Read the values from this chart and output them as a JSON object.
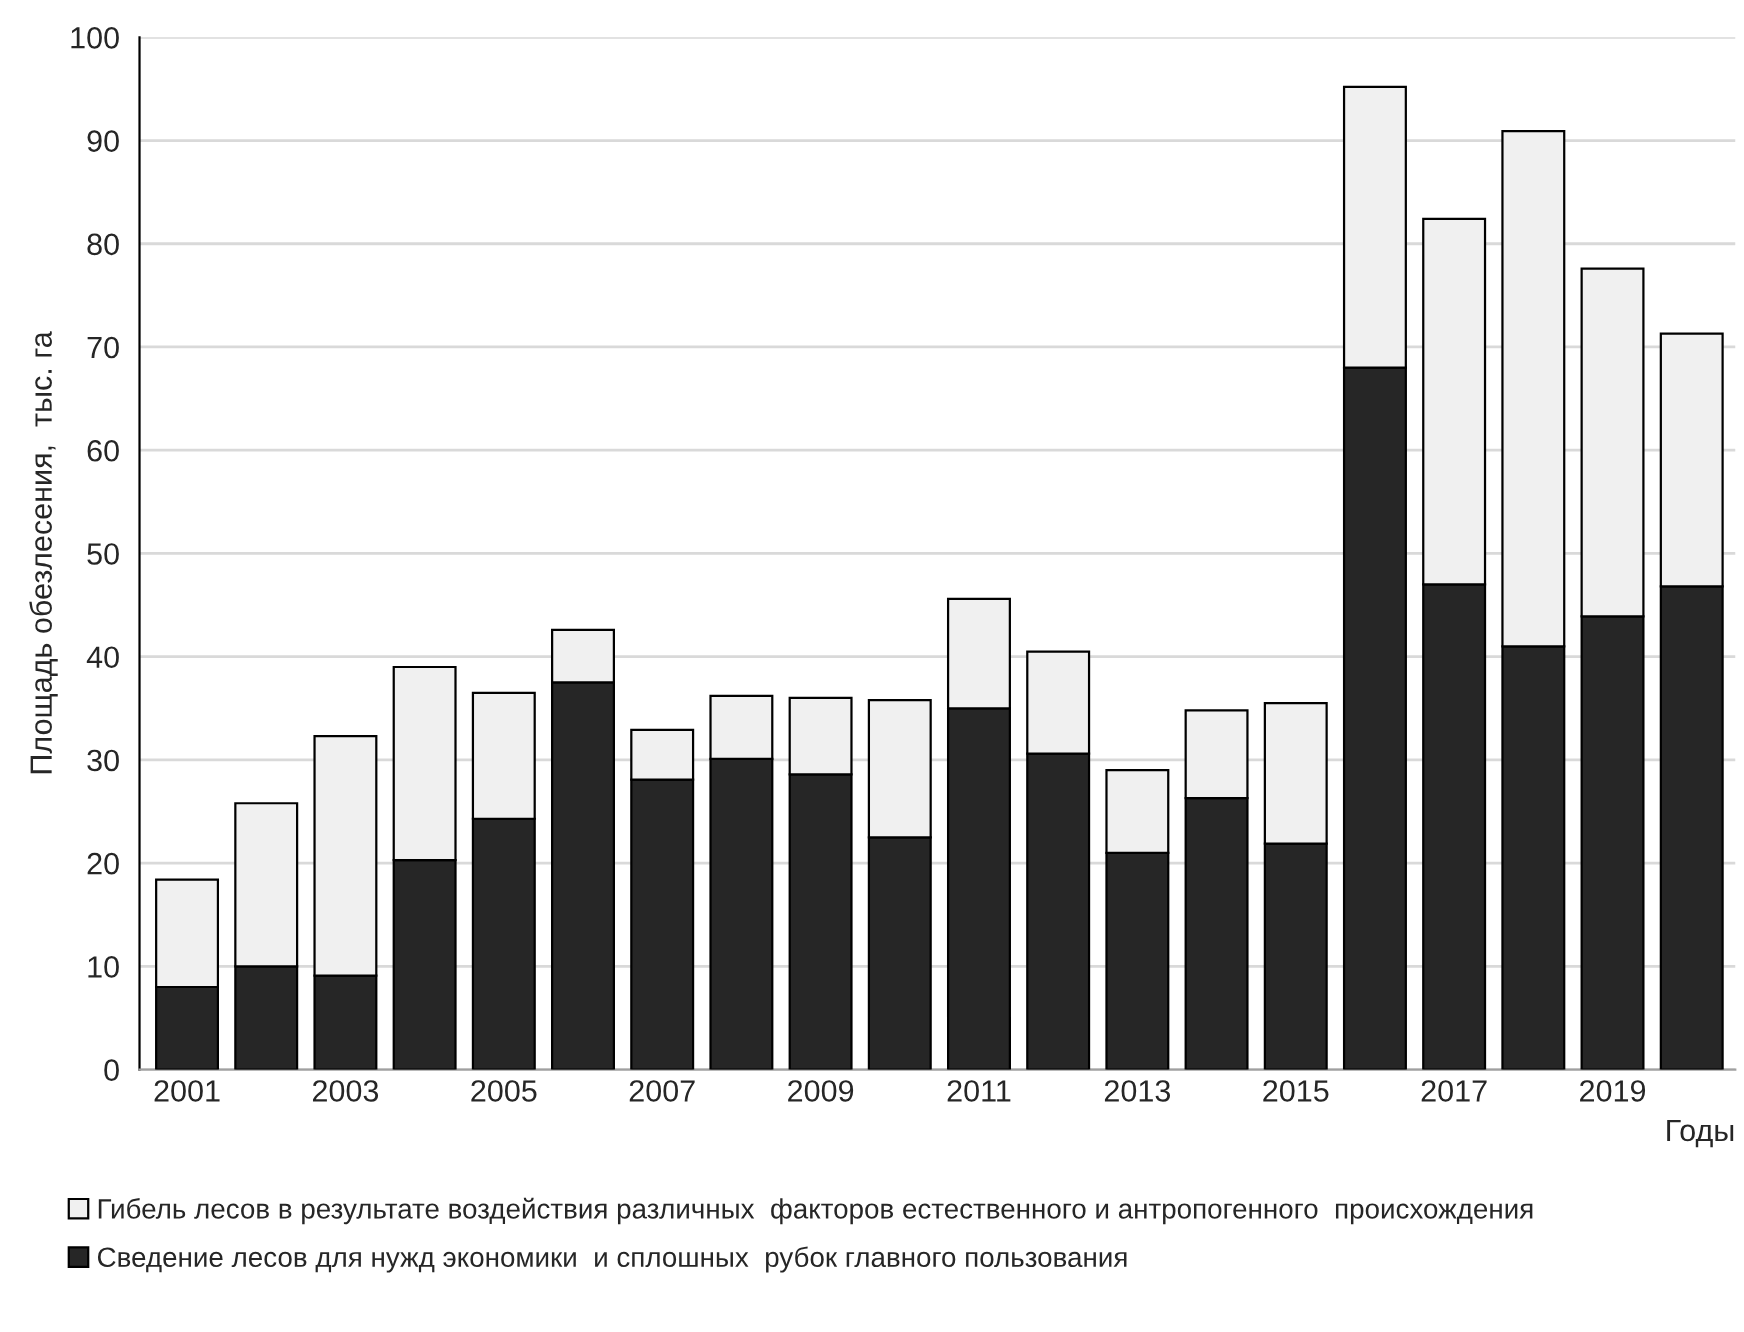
{
  "chart_data": {
    "type": "bar",
    "stacked": true,
    "xlabel": "Годы",
    "ylabel": "Площадь обезлесения,  тыс. га",
    "categories": [
      "2001",
      null,
      "2003",
      null,
      "2005",
      null,
      "2007",
      null,
      "2009",
      null,
      "2011",
      null,
      "2013",
      null,
      "2015",
      null,
      "2017",
      null,
      "2019",
      null
    ],
    "series": [
      {
        "name": "Сведение лесов для нужд экономики  и сплошных  рубок главного пользования",
        "color": "#262626",
        "values": [
          8,
          10,
          9.1,
          20.3,
          24.3,
          37.5,
          28.1,
          30.1,
          28.6,
          22.5,
          35,
          30.6,
          21,
          26.3,
          21.9,
          68,
          47,
          41,
          43.9,
          46.8
        ]
      },
      {
        "name": "Гибель лесов в результате воздействия различных  факторов естественного и антропогенного  происхождения",
        "color": "#f0f0f0",
        "values": [
          10.4,
          15.8,
          23.2,
          18.7,
          12.2,
          5.1,
          4.8,
          6.1,
          7.4,
          13.3,
          10.6,
          9.9,
          8,
          8.5,
          13.6,
          27.2,
          35.4,
          49.9,
          33.7,
          24.5
        ]
      }
    ],
    "ylim": [
      0,
      100
    ],
    "yticks": [
      0,
      10,
      20,
      30,
      40,
      50,
      60,
      70,
      80,
      90,
      100
    ],
    "grid": "y",
    "legend": "bottom"
  }
}
